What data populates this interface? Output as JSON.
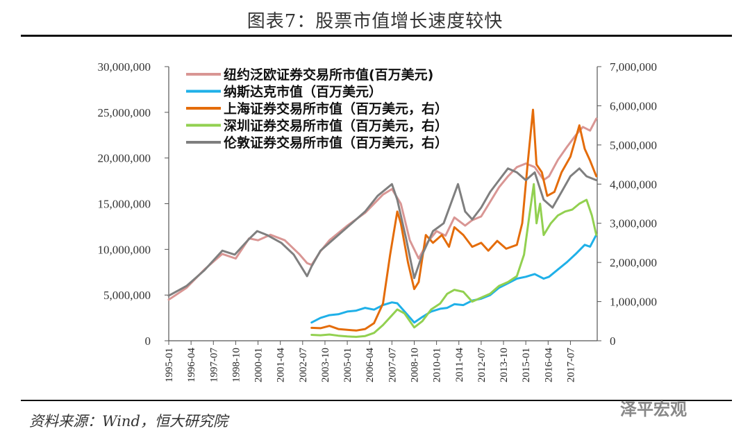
{
  "title": "图表7：股票市值增长速度较快",
  "source": "资料来源：Wind，恒大研究院",
  "watermark": "泽平宏观",
  "chart_data": {
    "type": "line",
    "left_axis": {
      "range": [
        0,
        30000000
      ],
      "ticks": [
        "0",
        "5,000,000",
        "10,000,000",
        "15,000,000",
        "20,000,000",
        "25,000,000",
        "30,000,000"
      ]
    },
    "right_axis": {
      "range": [
        0,
        7000000
      ],
      "ticks": [
        "0",
        "1,000,000",
        "2,000,000",
        "3,000,000",
        "4,000,000",
        "5,000,000",
        "6,000,000",
        "7,000,000"
      ]
    },
    "x_ticks": [
      "1995-01",
      "1996-04",
      "1997-07",
      "1998-10",
      "2000-01",
      "2001-04",
      "2002-07",
      "2003-10",
      "2005-01",
      "2006-04",
      "2007-07",
      "2008-10",
      "2010-01",
      "2011-04",
      "2012-07",
      "2013-10",
      "2015-01",
      "2016-04",
      "2017-07"
    ],
    "series": [
      {
        "name": "纽约泛欧证券交易所市值(百万美元)",
        "color": "#d99694",
        "axis": "left",
        "points": [
          [
            1995.0,
            4500000.0
          ],
          [
            1996.0,
            5800000.0
          ],
          [
            1997.0,
            7800000.0
          ],
          [
            1998.0,
            9500000.0
          ],
          [
            1998.75,
            9000000.0
          ],
          [
            1999.5,
            11200000.0
          ],
          [
            2000.0,
            11000000.0
          ],
          [
            2000.7,
            11600000.0
          ],
          [
            2001.5,
            11000000.0
          ],
          [
            2002.3,
            9500000.0
          ],
          [
            2002.75,
            8500000.0
          ],
          [
            2003.0,
            8300000.0
          ],
          [
            2003.5,
            9800000.0
          ],
          [
            2004.0,
            11000000.0
          ],
          [
            2005.0,
            12600000.0
          ],
          [
            2006.0,
            14000000.0
          ],
          [
            2007.0,
            16000000.0
          ],
          [
            2007.5,
            16600000.0
          ],
          [
            2008.0,
            15000000.0
          ],
          [
            2008.5,
            11000000.0
          ],
          [
            2009.0,
            9000000.0
          ],
          [
            2009.5,
            10800000.0
          ],
          [
            2010.0,
            12000000.0
          ],
          [
            2010.5,
            11500000.0
          ],
          [
            2011.0,
            13500000.0
          ],
          [
            2011.6,
            12600000.0
          ],
          [
            2012.0,
            13200000.0
          ],
          [
            2012.5,
            13600000.0
          ],
          [
            2013.0,
            15200000.0
          ],
          [
            2013.5,
            16800000.0
          ],
          [
            2014.0,
            18000000.0
          ],
          [
            2014.5,
            19000000.0
          ],
          [
            2015.0,
            19400000.0
          ],
          [
            2015.5,
            19000000.0
          ],
          [
            2016.0,
            17600000.0
          ],
          [
            2016.3,
            18000000.0
          ],
          [
            2016.8,
            19800000.0
          ],
          [
            2017.3,
            21200000.0
          ],
          [
            2017.8,
            22500000.0
          ],
          [
            2018.2,
            23400000.0
          ],
          [
            2018.6,
            23000000.0
          ],
          [
            2018.95,
            24300000.0
          ]
        ]
      },
      {
        "name": "纳斯达克市值（百万美元）",
        "color": "#1fb0e8",
        "axis": "left",
        "points": [
          [
            2003.0,
            2000000.0
          ],
          [
            2003.5,
            2500000.0
          ],
          [
            2004.0,
            2800000.0
          ],
          [
            2004.5,
            2900000.0
          ],
          [
            2005.0,
            3200000.0
          ],
          [
            2005.5,
            3300000.0
          ],
          [
            2006.0,
            3600000.0
          ],
          [
            2006.5,
            3400000.0
          ],
          [
            2007.0,
            3900000.0
          ],
          [
            2007.5,
            4200000.0
          ],
          [
            2007.8,
            4100000.0
          ],
          [
            2008.3,
            3000000.0
          ],
          [
            2008.75,
            2000000.0
          ],
          [
            2009.2,
            2600000.0
          ],
          [
            2009.7,
            3200000.0
          ],
          [
            2010.2,
            3500000.0
          ],
          [
            2010.6,
            3600000.0
          ],
          [
            2011.0,
            4000000.0
          ],
          [
            2011.5,
            3900000.0
          ],
          [
            2012.0,
            4400000.0
          ],
          [
            2012.5,
            4600000.0
          ],
          [
            2013.0,
            5000000.0
          ],
          [
            2013.5,
            5800000.0
          ],
          [
            2014.0,
            6300000.0
          ],
          [
            2014.5,
            6800000.0
          ],
          [
            2015.0,
            7000000.0
          ],
          [
            2015.5,
            7300000.0
          ],
          [
            2016.0,
            6800000.0
          ],
          [
            2016.3,
            7000000.0
          ],
          [
            2016.8,
            7800000.0
          ],
          [
            2017.3,
            8600000.0
          ],
          [
            2017.8,
            9500000.0
          ],
          [
            2018.3,
            10500000.0
          ],
          [
            2018.6,
            10300000.0
          ],
          [
            2018.95,
            11600000.0
          ]
        ]
      },
      {
        "name": "上海证券交易所市值（百万美元，右）",
        "color": "#e46c0a",
        "axis": "right",
        "points": [
          [
            2003.0,
            330000
          ],
          [
            2003.5,
            320000
          ],
          [
            2004.0,
            380000
          ],
          [
            2004.5,
            300000
          ],
          [
            2005.0,
            280000
          ],
          [
            2005.5,
            260000
          ],
          [
            2006.0,
            300000
          ],
          [
            2006.5,
            450000
          ],
          [
            2007.0,
            950000
          ],
          [
            2007.4,
            2200000
          ],
          [
            2007.8,
            3300000
          ],
          [
            2008.0,
            3000000
          ],
          [
            2008.4,
            2000000
          ],
          [
            2008.75,
            1320000
          ],
          [
            2009.0,
            1500000
          ],
          [
            2009.4,
            2700000
          ],
          [
            2009.8,
            2500000
          ],
          [
            2010.3,
            2700000
          ],
          [
            2010.7,
            2400000
          ],
          [
            2011.0,
            2900000
          ],
          [
            2011.5,
            2700000
          ],
          [
            2012.0,
            2400000
          ],
          [
            2012.5,
            2500000
          ],
          [
            2012.9,
            2300000
          ],
          [
            2013.4,
            2550000
          ],
          [
            2013.9,
            2350000
          ],
          [
            2014.5,
            2450000
          ],
          [
            2014.8,
            3000000
          ],
          [
            2015.1,
            4500000
          ],
          [
            2015.4,
            5900000
          ],
          [
            2015.6,
            4500000
          ],
          [
            2015.9,
            4300000
          ],
          [
            2016.2,
            3700000
          ],
          [
            2016.6,
            3800000
          ],
          [
            2017.0,
            4300000
          ],
          [
            2017.5,
            4700000
          ],
          [
            2018.0,
            5500000
          ],
          [
            2018.3,
            4900000
          ],
          [
            2018.6,
            4600000
          ],
          [
            2018.95,
            4200000
          ]
        ]
      },
      {
        "name": "深圳证券交易所市值（百万美元，右）",
        "color": "#92d050",
        "axis": "right",
        "points": [
          [
            2003.0,
            150000
          ],
          [
            2003.5,
            140000
          ],
          [
            2004.0,
            160000
          ],
          [
            2004.5,
            130000
          ],
          [
            2005.0,
            110000
          ],
          [
            2005.5,
            100000
          ],
          [
            2006.0,
            120000
          ],
          [
            2006.5,
            200000
          ],
          [
            2007.0,
            400000
          ],
          [
            2007.5,
            650000
          ],
          [
            2007.8,
            800000
          ],
          [
            2008.2,
            700000
          ],
          [
            2008.75,
            340000
          ],
          [
            2009.2,
            500000
          ],
          [
            2009.7,
            800000
          ],
          [
            2010.2,
            950000
          ],
          [
            2010.6,
            1200000
          ],
          [
            2011.0,
            1300000
          ],
          [
            2011.5,
            1250000
          ],
          [
            2012.0,
            1000000
          ],
          [
            2012.5,
            1100000
          ],
          [
            2013.0,
            1200000
          ],
          [
            2013.5,
            1400000
          ],
          [
            2014.0,
            1500000
          ],
          [
            2014.5,
            1650000
          ],
          [
            2014.9,
            2200000
          ],
          [
            2015.2,
            3200000
          ],
          [
            2015.45,
            4000000
          ],
          [
            2015.6,
            3000000
          ],
          [
            2015.8,
            3500000
          ],
          [
            2016.0,
            2700000
          ],
          [
            2016.4,
            3000000
          ],
          [
            2016.8,
            3200000
          ],
          [
            2017.2,
            3300000
          ],
          [
            2017.6,
            3350000
          ],
          [
            2018.0,
            3500000
          ],
          [
            2018.4,
            3600000
          ],
          [
            2018.7,
            3200000
          ],
          [
            2018.95,
            2700000
          ]
        ]
      },
      {
        "name": "伦敦证券交易所市值（百万美元，右）",
        "color": "#7f7f7f",
        "axis": "right",
        "points": [
          [
            1995.0,
            1150000
          ],
          [
            1996.0,
            1400000
          ],
          [
            1997.0,
            1800000
          ],
          [
            1998.0,
            2300000
          ],
          [
            1998.7,
            2200000
          ],
          [
            1999.5,
            2600000
          ],
          [
            1999.95,
            2800000
          ],
          [
            2000.5,
            2700000
          ],
          [
            2001.3,
            2500000
          ],
          [
            2002.0,
            2200000
          ],
          [
            2002.75,
            1650000
          ],
          [
            2003.0,
            1900000
          ],
          [
            2003.5,
            2300000
          ],
          [
            2004.0,
            2500000
          ],
          [
            2005.0,
            2900000
          ],
          [
            2006.0,
            3300000
          ],
          [
            2006.7,
            3700000
          ],
          [
            2007.5,
            4000000
          ],
          [
            2007.8,
            3600000
          ],
          [
            2008.3,
            2600000
          ],
          [
            2008.75,
            1600000
          ],
          [
            2009.2,
            2200000
          ],
          [
            2009.8,
            2800000
          ],
          [
            2010.4,
            3000000
          ],
          [
            2010.8,
            3500000
          ],
          [
            2011.2,
            4000000
          ],
          [
            2011.6,
            3300000
          ],
          [
            2012.0,
            3100000
          ],
          [
            2012.5,
            3400000
          ],
          [
            2013.0,
            3800000
          ],
          [
            2013.5,
            4100000
          ],
          [
            2014.0,
            4400000
          ],
          [
            2014.5,
            4300000
          ],
          [
            2015.0,
            4100000
          ],
          [
            2015.5,
            4300000
          ],
          [
            2016.0,
            3600000
          ],
          [
            2016.5,
            3400000
          ],
          [
            2017.0,
            3800000
          ],
          [
            2017.5,
            4200000
          ],
          [
            2018.0,
            4400000
          ],
          [
            2018.4,
            4200000
          ],
          [
            2018.95,
            4100000
          ]
        ]
      }
    ]
  }
}
